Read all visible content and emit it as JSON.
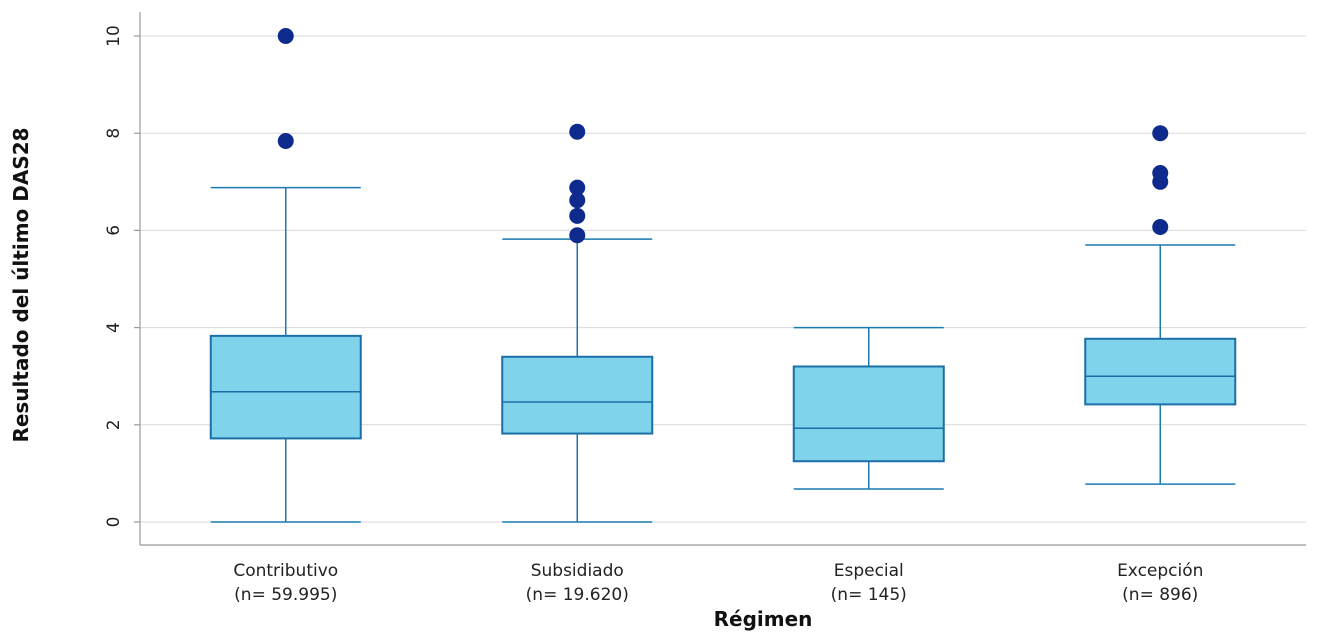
{
  "chart_data": {
    "type": "box",
    "xlabel": "Régimen",
    "ylabel": "Resultado del último DAS28",
    "ylim": [
      -0.5,
      10.5
    ],
    "yticks": [
      "0",
      "2",
      "4",
      "6",
      "8",
      "10"
    ],
    "grid": true,
    "colors": {
      "box_fill": "#7fd3ea",
      "box_stroke": "#1a6fa6",
      "outlier": "#0e2a8c"
    },
    "categories": [
      {
        "name": "Contributivo",
        "n_label": "(n= 59.995)",
        "whisker_low": 0.0,
        "q1": 1.72,
        "median": 2.68,
        "q3": 3.83,
        "whisker_high": 6.88,
        "outliers": [
          7.84,
          10.0
        ]
      },
      {
        "name": "Subsidiado",
        "n_label": "(n= 19.620)",
        "whisker_low": 0.0,
        "q1": 1.82,
        "median": 2.47,
        "q3": 3.4,
        "whisker_high": 5.82,
        "outliers": [
          5.9,
          6.3,
          6.62,
          6.88,
          8.03
        ]
      },
      {
        "name": "Especial",
        "n_label": "(n= 145)",
        "whisker_low": 0.68,
        "q1": 1.25,
        "median": 1.93,
        "q3": 3.2,
        "whisker_high": 4.0,
        "outliers": []
      },
      {
        "name": "Excepción",
        "n_label": "(n= 896)",
        "whisker_low": 0.78,
        "q1": 2.42,
        "median": 3.0,
        "q3": 3.77,
        "whisker_high": 5.7,
        "outliers": [
          6.07,
          7.0,
          7.18,
          8.0
        ]
      }
    ]
  }
}
